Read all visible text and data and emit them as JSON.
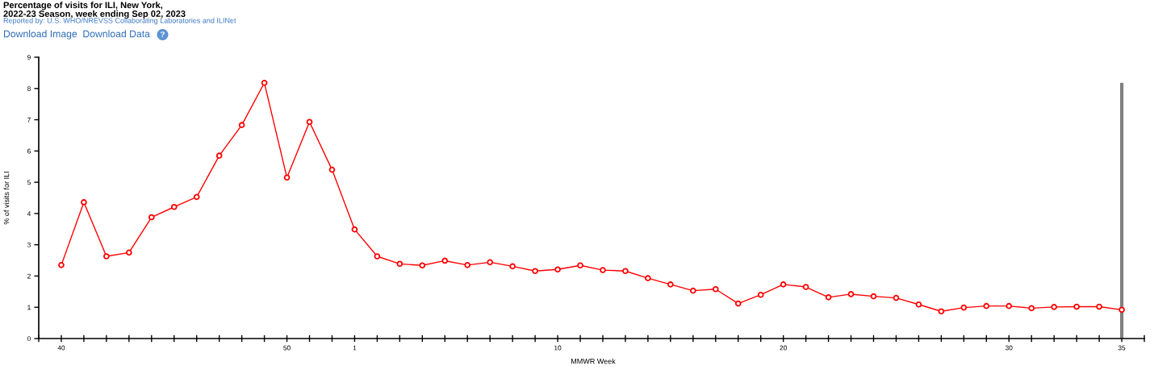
{
  "chart_data": {
    "type": "line",
    "title": "Percentage of visits for ILI, New York,\n2022-23 Season, week ending Sep 02, 2023",
    "subtitle": "Reported by: U.S. WHO/NREVSS Collaborating Laboratories and ILINet",
    "xlabel": "MMWR Week",
    "ylabel": "% of visits for ILI",
    "annotations": [
      "Download Image",
      "Download Data",
      "?"
    ],
    "categories": [
      "40",
      null,
      null,
      null,
      null,
      null,
      null,
      null,
      null,
      null,
      "50",
      null,
      null,
      "1",
      null,
      null,
      null,
      null,
      null,
      null,
      null,
      null,
      "10",
      null,
      null,
      null,
      null,
      null,
      null,
      null,
      null,
      null,
      "20",
      null,
      null,
      null,
      null,
      null,
      null,
      null,
      null,
      null,
      "30",
      null,
      null,
      null,
      null,
      "35"
    ],
    "series": [
      {
        "color": "#ff0000",
        "values": [
          2.35,
          4.36,
          2.63,
          2.75,
          3.88,
          4.21,
          4.53,
          5.85,
          6.83,
          8.18,
          5.15,
          6.93,
          5.4,
          3.49,
          2.63,
          2.39,
          2.34,
          2.49,
          2.35,
          2.44,
          2.31,
          2.16,
          2.21,
          2.34,
          2.19,
          2.16,
          1.93,
          1.73,
          1.53,
          1.58,
          1.12,
          1.4,
          1.73,
          1.65,
          1.32,
          1.42,
          1.35,
          1.3,
          1.09,
          0.87,
          0.99,
          1.04,
          1.04,
          0.97,
          1.01,
          1.02,
          1.02,
          0.92
        ]
      }
    ],
    "ylim": [
      0,
      9
    ],
    "yticks": [
      0,
      1,
      2,
      3,
      4,
      5,
      6,
      7,
      8,
      9
    ],
    "marker": "circle",
    "line_style": "solid",
    "ref_lines": [
      {
        "axis": "x",
        "value": "35",
        "color": "#808080"
      }
    ]
  }
}
